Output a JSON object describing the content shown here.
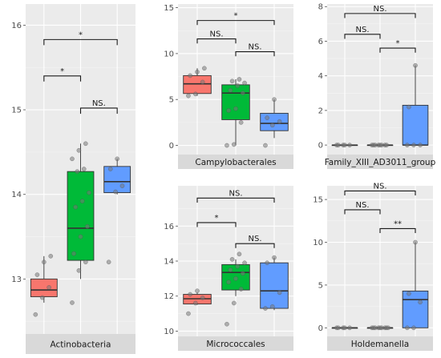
{
  "chart_data": [
    {
      "type": "box",
      "title": "Actinobacteria",
      "ylim": [
        12.35,
        16.25
      ],
      "yticks": [
        13,
        14,
        15,
        16
      ],
      "groups": [
        {
          "color": "#F8766D",
          "box": {
            "min": 12.72,
            "q1": 12.79,
            "median": 12.87,
            "q3": 13.0,
            "max": 13.27
          },
          "points": [
            12.58,
            12.78,
            12.9,
            13.05,
            13.2,
            13.27
          ]
        },
        {
          "color": "#00BA38",
          "box": {
            "min": 13.0,
            "q1": 13.22,
            "median": 13.6,
            "q3": 14.27,
            "max": 14.6
          },
          "points": [
            12.72,
            13.1,
            13.2,
            13.3,
            13.5,
            13.62,
            13.85,
            13.92,
            14.02,
            14.27,
            14.3,
            14.42,
            14.52,
            14.6
          ]
        },
        {
          "color": "#619CFF",
          "box": {
            "min": 14.0,
            "q1": 14.02,
            "median": 14.15,
            "q3": 14.33,
            "max": 14.42
          },
          "points": [
            13.2,
            14.03,
            14.1,
            14.3,
            14.42
          ]
        }
      ],
      "comparisons": [
        {
          "from": 1,
          "to": 2,
          "y": 15.4,
          "label": "*"
        },
        {
          "from": 2,
          "to": 3,
          "y": 15.02,
          "label": "NS."
        },
        {
          "from": 1,
          "to": 3,
          "y": 15.83,
          "label": "*"
        }
      ]
    },
    {
      "type": "box",
      "title": "Campylobacterales",
      "ylim": [
        -1.0,
        15.4
      ],
      "yticks": [
        0,
        5,
        10,
        15
      ],
      "groups": [
        {
          "color": "#F8766D",
          "box": {
            "min": 5.4,
            "q1": 5.65,
            "median": 6.7,
            "q3": 7.6,
            "max": 8.4
          },
          "points": [
            5.4,
            5.6,
            6.9,
            7.6,
            8.0,
            8.4
          ]
        },
        {
          "color": "#00BA38",
          "box": {
            "min": 0.0,
            "q1": 2.8,
            "median": 5.7,
            "q3": 6.6,
            "max": 7.2
          },
          "points": [
            0.0,
            0.1,
            2.5,
            3.8,
            4.0,
            5.7,
            6.0,
            6.5,
            6.8,
            7.0,
            7.2
          ]
        },
        {
          "color": "#619CFF",
          "box": {
            "min": 0.8,
            "q1": 1.6,
            "median": 2.4,
            "q3": 3.5,
            "max": 5.0
          },
          "points": [
            0.0,
            2.2,
            2.6,
            3.0,
            5.0
          ]
        }
      ],
      "comparisons": [
        {
          "from": 1,
          "to": 2,
          "y": 11.6,
          "label": "NS."
        },
        {
          "from": 2,
          "to": 3,
          "y": 10.2,
          "label": "NS."
        },
        {
          "from": 1,
          "to": 3,
          "y": 13.6,
          "label": "*"
        }
      ]
    },
    {
      "type": "box",
      "title": "Family_XIII_AD3011_group",
      "ylim": [
        -0.55,
        8.15
      ],
      "yticks": [
        0,
        2,
        4,
        6,
        8
      ],
      "groups": [
        {
          "color": "#F8766D",
          "box": {
            "min": 0,
            "q1": 0,
            "median": 0,
            "q3": 0,
            "max": 0
          },
          "points": [
            0,
            0,
            0,
            0,
            0
          ]
        },
        {
          "color": "#00BA38",
          "box": {
            "min": 0,
            "q1": 0,
            "median": 0,
            "q3": 0,
            "max": 0
          },
          "points": [
            0,
            0,
            0,
            0,
            0,
            0,
            0,
            0
          ]
        },
        {
          "color": "#619CFF",
          "box": {
            "min": 0,
            "q1": 0,
            "median": 0,
            "q3": 2.3,
            "max": 4.6
          },
          "points": [
            0,
            0,
            0,
            2.2,
            4.6
          ]
        }
      ],
      "comparisons": [
        {
          "from": 1,
          "to": 2,
          "y": 6.4,
          "label": "NS."
        },
        {
          "from": 2,
          "to": 3,
          "y": 5.6,
          "label": "*"
        },
        {
          "from": 1,
          "to": 3,
          "y": 7.6,
          "label": "NS."
        }
      ]
    },
    {
      "type": "box",
      "title": "Micrococcales",
      "ylim": [
        9.7,
        18.3
      ],
      "yticks": [
        10,
        12,
        14,
        16
      ],
      "groups": [
        {
          "color": "#F8766D",
          "box": {
            "min": 11.5,
            "q1": 11.55,
            "median": 11.85,
            "q3": 12.1,
            "max": 12.2
          },
          "points": [
            11.0,
            11.6,
            11.9,
            12.1,
            12.3
          ]
        },
        {
          "color": "#00BA38",
          "box": {
            "min": 12.0,
            "q1": 12.35,
            "median": 13.35,
            "q3": 13.8,
            "max": 14.1
          },
          "points": [
            10.4,
            11.6,
            12.4,
            12.8,
            13.0,
            13.3,
            13.5,
            13.7,
            13.9,
            14.1,
            14.4
          ]
        },
        {
          "color": "#619CFF",
          "box": {
            "min": 11.2,
            "q1": 11.3,
            "median": 12.3,
            "q3": 13.9,
            "max": 14.2
          },
          "points": [
            11.3,
            11.4,
            12.2,
            13.9,
            14.2
          ]
        }
      ],
      "comparisons": [
        {
          "from": 1,
          "to": 2,
          "y": 16.2,
          "label": "*"
        },
        {
          "from": 2,
          "to": 3,
          "y": 15.0,
          "label": "NS."
        },
        {
          "from": 1,
          "to": 3,
          "y": 17.6,
          "label": "NS."
        }
      ]
    },
    {
      "type": "box",
      "title": "Holdemanella",
      "ylim": [
        -1.0,
        16.6
      ],
      "yticks": [
        0,
        5,
        10,
        15
      ],
      "groups": [
        {
          "color": "#F8766D",
          "box": {
            "min": 0,
            "q1": 0,
            "median": 0,
            "q3": 0,
            "max": 0
          },
          "points": [
            0,
            0,
            0,
            0,
            0
          ]
        },
        {
          "color": "#00BA38",
          "box": {
            "min": 0,
            "q1": 0,
            "median": 0,
            "q3": 0,
            "max": 0
          },
          "points": [
            0,
            0,
            0,
            0,
            0,
            0,
            0,
            0,
            0
          ]
        },
        {
          "color": "#619CFF",
          "box": {
            "min": 0,
            "q1": 0,
            "median": 3.3,
            "q3": 4.3,
            "max": 10.0
          },
          "points": [
            0,
            0,
            3.0,
            4.0,
            10.0
          ]
        }
      ],
      "comparisons": [
        {
          "from": 1,
          "to": 2,
          "y": 13.8,
          "label": "NS."
        },
        {
          "from": 2,
          "to": 3,
          "y": 11.6,
          "label": "**"
        },
        {
          "from": 1,
          "to": 3,
          "y": 16.0,
          "label": "NS."
        }
      ]
    }
  ]
}
